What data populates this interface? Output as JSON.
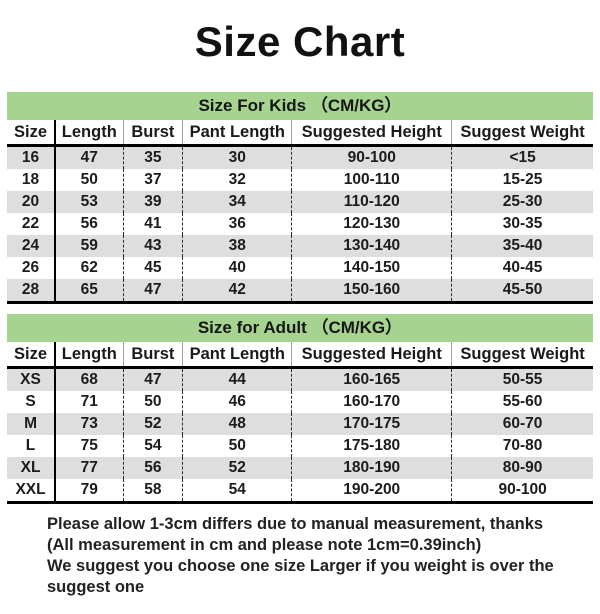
{
  "title": "Size Chart",
  "colors": {
    "section_header_green": "#a7d391",
    "alt_row_gray": "#dedede",
    "text_black": "#1a1a1a"
  },
  "tables": [
    {
      "heading": "Size For Kids （CM/KG）",
      "columns": [
        "Size",
        "Length",
        "Burst",
        "Pant Length",
        "Suggested Height",
        "Suggest Weight"
      ],
      "rows": [
        [
          "16",
          "47",
          "35",
          "30",
          "90-100",
          "<15"
        ],
        [
          "18",
          "50",
          "37",
          "32",
          "100-110",
          "15-25"
        ],
        [
          "20",
          "53",
          "39",
          "34",
          "110-120",
          "25-30"
        ],
        [
          "22",
          "56",
          "41",
          "36",
          "120-130",
          "30-35"
        ],
        [
          "24",
          "59",
          "43",
          "38",
          "130-140",
          "35-40"
        ],
        [
          "26",
          "62",
          "45",
          "40",
          "140-150",
          "40-45"
        ],
        [
          "28",
          "65",
          "47",
          "42",
          "150-160",
          "45-50"
        ]
      ]
    },
    {
      "heading": "Size for Adult （CM/KG）",
      "columns": [
        "Size",
        "Length",
        "Burst",
        "Pant Length",
        "Suggested Height",
        "Suggest Weight"
      ],
      "rows": [
        [
          "XS",
          "68",
          "47",
          "44",
          "160-165",
          "50-55"
        ],
        [
          "S",
          "71",
          "50",
          "46",
          "160-170",
          "55-60"
        ],
        [
          "M",
          "73",
          "52",
          "48",
          "170-175",
          "60-70"
        ],
        [
          "L",
          "75",
          "54",
          "50",
          "175-180",
          "70-80"
        ],
        [
          "XL",
          "77",
          "56",
          "52",
          "180-190",
          "80-90"
        ],
        [
          "XXL",
          "79",
          "58",
          "54",
          "190-200",
          "90-100"
        ]
      ]
    }
  ],
  "notes": [
    "Please allow 1-3cm differs due to manual measurement, thanks",
    "(All measurement in cm and please note 1cm=0.39inch)",
    "We suggest you choose one size Larger if you weight is over the suggest one"
  ]
}
